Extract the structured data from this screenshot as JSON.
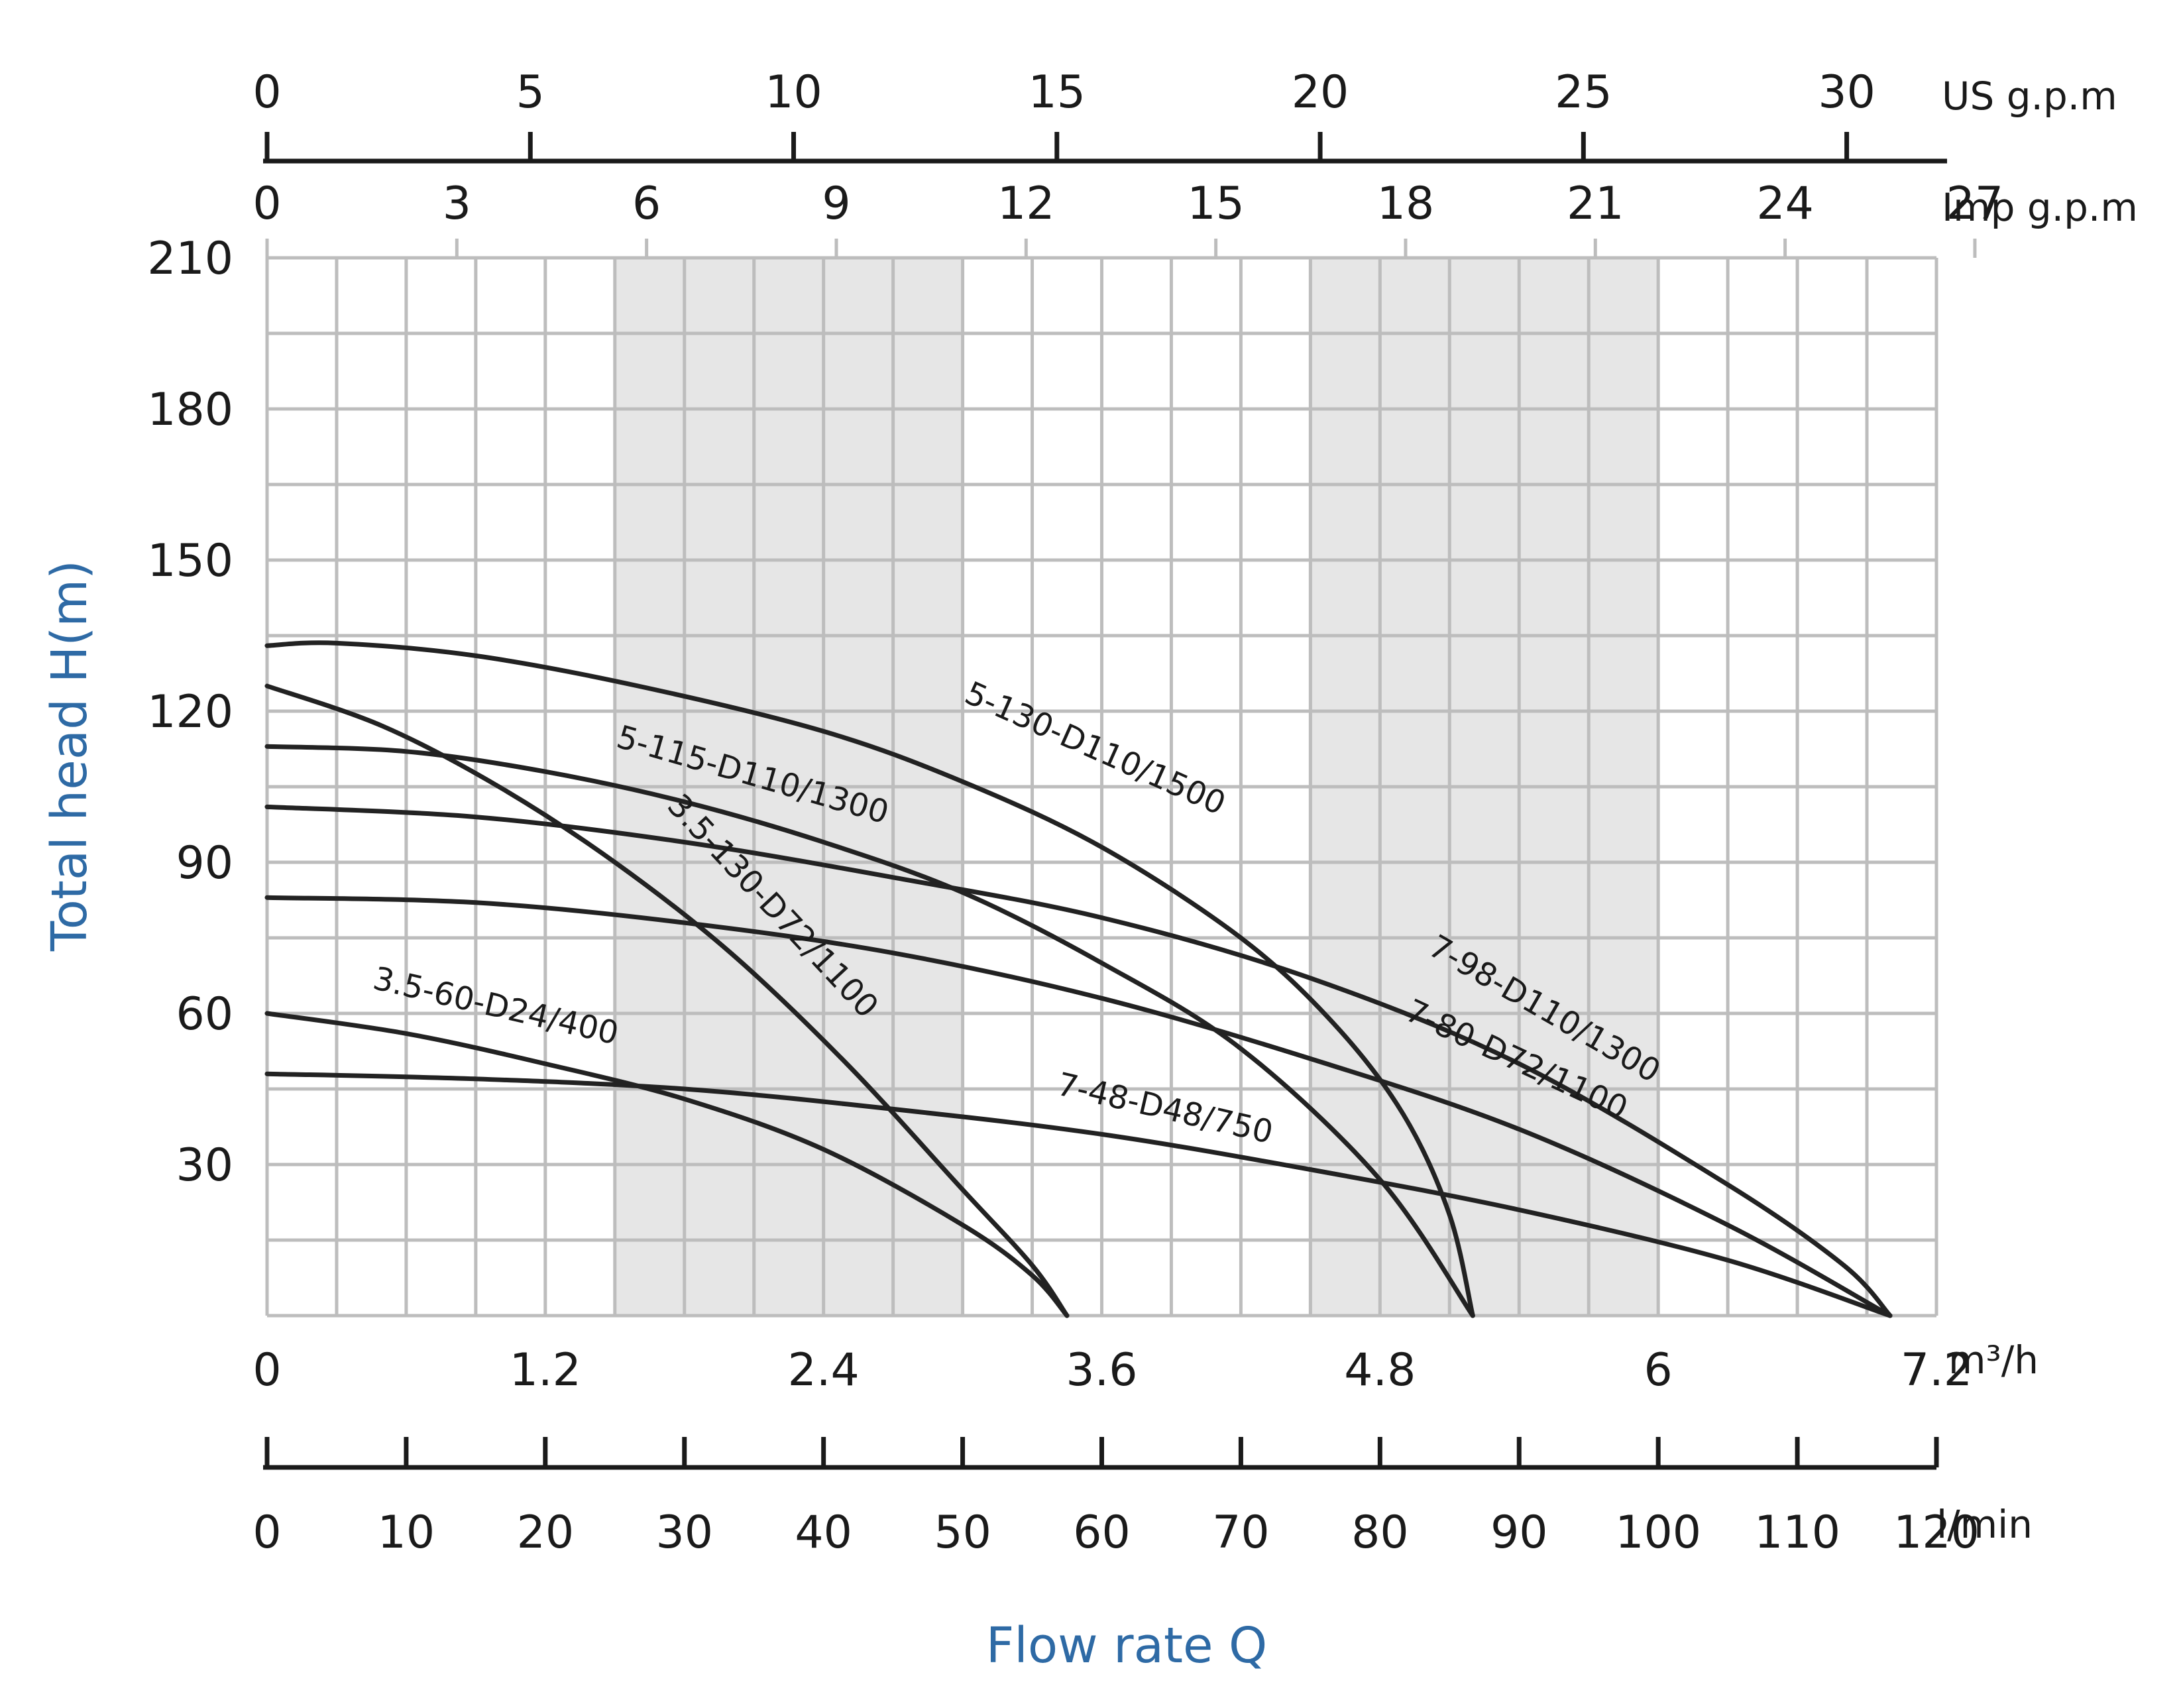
{
  "chart_data": {
    "type": "line",
    "title": "",
    "xlabel": "Flow rate Q",
    "ylabel": "Total head H(m)",
    "grid": true,
    "xlim": [
      0,
      7.2
    ],
    "ylim": [
      0,
      210
    ],
    "x_unit": "m³/h",
    "y_ticks": [
      "30",
      "60",
      "90",
      "120",
      "150",
      "180",
      "210"
    ],
    "x_ticks": [
      "0",
      "1.2",
      "2.4",
      "3.6",
      "4.8",
      "6",
      "7.2"
    ],
    "x_tick_values": [
      0,
      1.2,
      2.4,
      3.6,
      4.8,
      6,
      7.2
    ],
    "shaded_bands": [
      [
        1.5,
        3.0
      ],
      [
        4.5,
        6.0
      ]
    ],
    "secondary_axes": [
      {
        "name": "US g.p.m",
        "position": "top",
        "ticks": [
          "0",
          "5",
          "10",
          "15",
          "20",
          "25",
          "30"
        ],
        "tick_values": [
          0,
          5,
          10,
          15,
          20,
          25,
          30
        ],
        "m3h_per_unit": 0.2271
      },
      {
        "name": "Imp g.p.m",
        "position": "top",
        "ticks": [
          "0",
          "3",
          "6",
          "9",
          "12",
          "15",
          "18",
          "21",
          "24",
          "27"
        ],
        "tick_values": [
          0,
          3,
          6,
          9,
          12,
          15,
          18,
          21,
          24,
          27
        ],
        "m3h_per_unit": 0.2728
      },
      {
        "name": "l/min",
        "position": "bottom",
        "ticks": [
          "0",
          "10",
          "20",
          "30",
          "40",
          "50",
          "60",
          "70",
          "80",
          "90",
          "100",
          "110",
          "120"
        ],
        "tick_values": [
          0,
          10,
          20,
          30,
          40,
          50,
          60,
          70,
          80,
          90,
          100,
          110,
          120
        ],
        "m3h_per_unit": 0.06
      }
    ],
    "series": [
      {
        "name": "5-130-D110/1500",
        "x": [
          0,
          0.3,
          0.9,
          1.6,
          2.4,
          3.0,
          3.6,
          4.2,
          4.6,
          4.9,
          5.1,
          5.2
        ],
        "y": [
          133,
          133.5,
          131,
          125,
          116,
          106,
          93,
          75,
          58,
          40,
          20,
          0
        ]
      },
      {
        "name": "5-115-D110/1300",
        "x": [
          0,
          0.6,
          1.2,
          1.8,
          2.4,
          3.0,
          3.6,
          4.2,
          4.8,
          5.2
        ],
        "y": [
          113,
          112,
          108,
          102,
          94,
          84,
          70,
          53,
          27,
          0
        ]
      },
      {
        "name": "3.5-130-D72/1100",
        "x": [
          0,
          0.5,
          1.0,
          1.5,
          2.0,
          2.5,
          3.0,
          3.3,
          3.45
        ],
        "y": [
          125,
          117,
          105,
          90,
          72,
          50,
          25,
          10,
          0
        ]
      },
      {
        "name": "3.5-60-D24/400",
        "x": [
          0,
          0.6,
          1.2,
          1.8,
          2.4,
          3.0,
          3.3,
          3.45
        ],
        "y": [
          60,
          56,
          50,
          43,
          33,
          18,
          8,
          0
        ]
      },
      {
        "name": "7-98-D110/1300",
        "x": [
          0,
          0.9,
          1.8,
          2.7,
          3.6,
          4.5,
          5.4,
          6.3,
          6.8,
          7.0
        ],
        "y": [
          101,
          99,
          94,
          87,
          79,
          67,
          50,
          26,
          10,
          0
        ]
      },
      {
        "name": "7-80-D72/1100",
        "x": [
          0,
          0.9,
          1.8,
          2.7,
          3.6,
          4.5,
          5.4,
          6.3,
          7.0
        ],
        "y": [
          83,
          82,
          78,
          72,
          63,
          51,
          37,
          18,
          0
        ]
      },
      {
        "name": "7-48-D48/750",
        "x": [
          0,
          0.9,
          1.8,
          2.7,
          3.6,
          4.5,
          5.4,
          6.3,
          7.0
        ],
        "y": [
          48,
          47,
          45,
          41,
          36,
          29,
          21,
          11,
          0
        ]
      }
    ]
  }
}
